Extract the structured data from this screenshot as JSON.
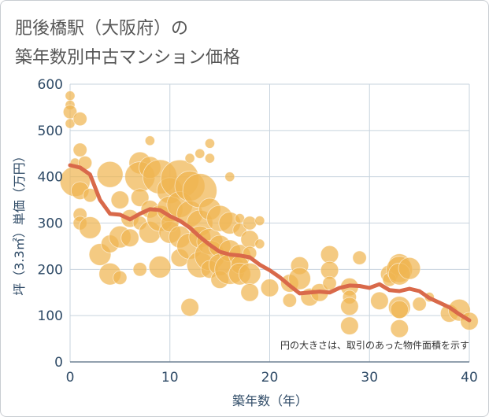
{
  "title": {
    "line1": "肥後橋駅（大阪府）の",
    "line2": "築年数別中古マンション価格"
  },
  "colors": {
    "bubble": "#f0b552",
    "line": "#d9694a",
    "grid": "#c7d3de",
    "text": "#2e4a66"
  },
  "chart_data": {
    "type": "scatter",
    "xlabel": "築年数（年）",
    "ylabel": "坪（3.3㎡）単価（万円）",
    "xlim": [
      0,
      40
    ],
    "ylim": [
      0,
      600
    ],
    "xticks": [
      0,
      10,
      20,
      30,
      40
    ],
    "yticks": [
      0,
      100,
      200,
      300,
      400,
      500,
      600
    ],
    "grid": true,
    "note": "円の大きさは、取引のあった物件面積を示す",
    "points": [
      {
        "x": 0,
        "y": 575,
        "s": 1
      },
      {
        "x": 0,
        "y": 555,
        "s": 1
      },
      {
        "x": 0,
        "y": 540,
        "s": 2
      },
      {
        "x": 0,
        "y": 515,
        "s": 1
      },
      {
        "x": 1,
        "y": 525,
        "s": 2
      },
      {
        "x": 1,
        "y": 458,
        "s": 2
      },
      {
        "x": 0.5,
        "y": 430,
        "s": 1
      },
      {
        "x": 1.5,
        "y": 430,
        "s": 2
      },
      {
        "x": 0.5,
        "y": 390,
        "s": 6
      },
      {
        "x": 1,
        "y": 370,
        "s": 3
      },
      {
        "x": 2,
        "y": 360,
        "s": 2
      },
      {
        "x": 1,
        "y": 318,
        "s": 2
      },
      {
        "x": 1,
        "y": 300,
        "s": 2
      },
      {
        "x": 2,
        "y": 290,
        "s": 4
      },
      {
        "x": 3,
        "y": 232,
        "s": 4
      },
      {
        "x": 4,
        "y": 255,
        "s": 3
      },
      {
        "x": 4,
        "y": 190,
        "s": 4
      },
      {
        "x": 5,
        "y": 182,
        "s": 2
      },
      {
        "x": 4,
        "y": 405,
        "s": 5
      },
      {
        "x": 5,
        "y": 350,
        "s": 3
      },
      {
        "x": 5,
        "y": 270,
        "s": 4
      },
      {
        "x": 6,
        "y": 268,
        "s": 3
      },
      {
        "x": 6,
        "y": 310,
        "s": 3
      },
      {
        "x": 7,
        "y": 430,
        "s": 4
      },
      {
        "x": 7,
        "y": 400,
        "s": 6
      },
      {
        "x": 7,
        "y": 355,
        "s": 3
      },
      {
        "x": 7,
        "y": 300,
        "s": 2
      },
      {
        "x": 7,
        "y": 200,
        "s": 2
      },
      {
        "x": 8,
        "y": 478,
        "s": 1
      },
      {
        "x": 8,
        "y": 420,
        "s": 4
      },
      {
        "x": 8,
        "y": 330,
        "s": 3
      },
      {
        "x": 8,
        "y": 280,
        "s": 4
      },
      {
        "x": 9,
        "y": 400,
        "s": 7
      },
      {
        "x": 9,
        "y": 310,
        "s": 5
      },
      {
        "x": 9,
        "y": 205,
        "s": 4
      },
      {
        "x": 10,
        "y": 370,
        "s": 5
      },
      {
        "x": 10,
        "y": 330,
        "s": 5
      },
      {
        "x": 10,
        "y": 280,
        "s": 4
      },
      {
        "x": 10,
        "y": 300,
        "s": 3
      },
      {
        "x": 11,
        "y": 395,
        "s": 8
      },
      {
        "x": 11,
        "y": 340,
        "s": 5
      },
      {
        "x": 11,
        "y": 270,
        "s": 4
      },
      {
        "x": 11,
        "y": 225,
        "s": 3
      },
      {
        "x": 12,
        "y": 440,
        "s": 1
      },
      {
        "x": 12,
        "y": 380,
        "s": 6
      },
      {
        "x": 12,
        "y": 320,
        "s": 5
      },
      {
        "x": 12,
        "y": 250,
        "s": 5
      },
      {
        "x": 12,
        "y": 118,
        "s": 3
      },
      {
        "x": 13,
        "y": 450,
        "s": 1
      },
      {
        "x": 13,
        "y": 370,
        "s": 7
      },
      {
        "x": 13,
        "y": 300,
        "s": 5
      },
      {
        "x": 13,
        "y": 270,
        "s": 4
      },
      {
        "x": 13,
        "y": 210,
        "s": 5
      },
      {
        "x": 14,
        "y": 472,
        "s": 1
      },
      {
        "x": 14,
        "y": 440,
        "s": 1
      },
      {
        "x": 14,
        "y": 330,
        "s": 4
      },
      {
        "x": 14,
        "y": 260,
        "s": 5
      },
      {
        "x": 14,
        "y": 230,
        "s": 6
      },
      {
        "x": 14,
        "y": 200,
        "s": 3
      },
      {
        "x": 15,
        "y": 310,
        "s": 5
      },
      {
        "x": 15,
        "y": 250,
        "s": 4
      },
      {
        "x": 15,
        "y": 210,
        "s": 4
      },
      {
        "x": 15,
        "y": 178,
        "s": 3
      },
      {
        "x": 16,
        "y": 400,
        "s": 1
      },
      {
        "x": 16,
        "y": 300,
        "s": 4
      },
      {
        "x": 16,
        "y": 240,
        "s": 4
      },
      {
        "x": 16,
        "y": 200,
        "s": 6
      },
      {
        "x": 17,
        "y": 310,
        "s": 1
      },
      {
        "x": 17,
        "y": 285,
        "s": 2
      },
      {
        "x": 17,
        "y": 230,
        "s": 4
      },
      {
        "x": 17,
        "y": 210,
        "s": 3
      },
      {
        "x": 17,
        "y": 190,
        "s": 4
      },
      {
        "x": 18,
        "y": 300,
        "s": 2
      },
      {
        "x": 18,
        "y": 265,
        "s": 3
      },
      {
        "x": 18,
        "y": 235,
        "s": 2
      },
      {
        "x": 18,
        "y": 190,
        "s": 4
      },
      {
        "x": 18,
        "y": 150,
        "s": 3
      },
      {
        "x": 19,
        "y": 305,
        "s": 1
      },
      {
        "x": 19,
        "y": 255,
        "s": 1
      },
      {
        "x": 20,
        "y": 160,
        "s": 3
      },
      {
        "x": 22,
        "y": 170,
        "s": 3
      },
      {
        "x": 22,
        "y": 133,
        "s": 2
      },
      {
        "x": 23,
        "y": 208,
        "s": 3
      },
      {
        "x": 23,
        "y": 180,
        "s": 4
      },
      {
        "x": 24,
        "y": 140,
        "s": 3
      },
      {
        "x": 25,
        "y": 150,
        "s": 3
      },
      {
        "x": 26,
        "y": 232,
        "s": 3
      },
      {
        "x": 26,
        "y": 198,
        "s": 3
      },
      {
        "x": 26,
        "y": 170,
        "s": 2
      },
      {
        "x": 28,
        "y": 162,
        "s": 3
      },
      {
        "x": 28,
        "y": 140,
        "s": 2
      },
      {
        "x": 28,
        "y": 120,
        "s": 3
      },
      {
        "x": 28,
        "y": 78,
        "s": 3
      },
      {
        "x": 29,
        "y": 225,
        "s": 2
      },
      {
        "x": 31,
        "y": 132,
        "s": 3
      },
      {
        "x": 32,
        "y": 190,
        "s": 3
      },
      {
        "x": 32,
        "y": 178,
        "s": 2
      },
      {
        "x": 33,
        "y": 210,
        "s": 4
      },
      {
        "x": 33,
        "y": 200,
        "s": 5
      },
      {
        "x": 33,
        "y": 190,
        "s": 4
      },
      {
        "x": 33,
        "y": 118,
        "s": 4
      },
      {
        "x": 33,
        "y": 113,
        "s": 3
      },
      {
        "x": 33,
        "y": 72,
        "s": 3
      },
      {
        "x": 34,
        "y": 202,
        "s": 4
      },
      {
        "x": 35,
        "y": 125,
        "s": 2
      },
      {
        "x": 36,
        "y": 140,
        "s": 1
      },
      {
        "x": 38,
        "y": 105,
        "s": 3
      },
      {
        "x": 39,
        "y": 112,
        "s": 4
      },
      {
        "x": 40,
        "y": 88,
        "s": 3
      }
    ],
    "trend": {
      "x": [
        0,
        1,
        2,
        3,
        4,
        5,
        6,
        7,
        8,
        9,
        10,
        11,
        12,
        13,
        14,
        15,
        16,
        17,
        18,
        19,
        20,
        21,
        22,
        23,
        24,
        25,
        26,
        27,
        28,
        29,
        30,
        31,
        32,
        33,
        34,
        35,
        36,
        37,
        38,
        39,
        40
      ],
      "y": [
        425,
        420,
        405,
        350,
        320,
        318,
        308,
        320,
        330,
        328,
        315,
        305,
        290,
        270,
        253,
        238,
        232,
        230,
        226,
        210,
        198,
        183,
        165,
        148,
        150,
        152,
        150,
        160,
        165,
        164,
        160,
        168,
        155,
        153,
        158,
        153,
        138,
        128,
        118,
        103,
        90
      ]
    }
  }
}
